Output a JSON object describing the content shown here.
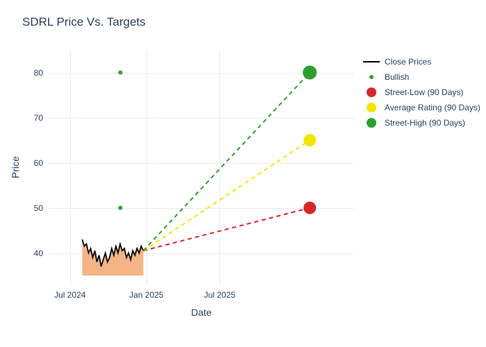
{
  "chart": {
    "title": "SDRL Price Vs. Targets",
    "xlabel": "Date",
    "ylabel": "Price",
    "background": "#ffffff",
    "plot_bg": "#ffffff",
    "grid_color": "#e5ecf6",
    "text_color": "#2a3f5f",
    "ylim": [
      33,
      85
    ],
    "yticks": [
      40,
      50,
      60,
      70,
      80
    ],
    "xticks": [
      "Jul 2024",
      "Jan 2025",
      "Jul 2025"
    ],
    "xtick_positions": [
      0.07,
      0.32,
      0.56
    ],
    "close_prices": {
      "color": "#000000",
      "fill": "#f4ac78",
      "fill_opacity": 0.9,
      "x_start": 0.11,
      "x_end": 0.31,
      "y_baseline": 35,
      "points": [
        43,
        41.5,
        42,
        40,
        41,
        39,
        40.5,
        38,
        39.5,
        37,
        38.5,
        40,
        38,
        39,
        41,
        39.5,
        41.5,
        40,
        42,
        40.5,
        41,
        39,
        40,
        38.5,
        40.5,
        39.5,
        41,
        40,
        41.5,
        40.5
      ]
    },
    "bullish_points": {
      "color": "#2ca02c",
      "size": 6,
      "points": [
        {
          "x": 0.235,
          "y": 80
        },
        {
          "x": 0.235,
          "y": 50
        }
      ]
    },
    "projections": {
      "start_x": 0.31,
      "start_y": 40.5,
      "end_x": 0.855,
      "dash": "6,5",
      "width": 2,
      "targets": {
        "low": {
          "y": 50,
          "color": "#d62728",
          "marker_size": 18
        },
        "avg": {
          "y": 65,
          "color": "#f2e600",
          "marker_size": 18
        },
        "high": {
          "y": 80,
          "color": "#2ca02c",
          "marker_size": 20
        }
      }
    },
    "legend": [
      {
        "label": "Close Prices",
        "type": "line",
        "color": "#000000"
      },
      {
        "label": "Bullish",
        "type": "dot",
        "color": "#2ca02c",
        "size": 6
      },
      {
        "label": "Street-Low (90 Days)",
        "type": "dot",
        "color": "#d62728",
        "size": 14
      },
      {
        "label": "Average Rating (90 Days)",
        "type": "dot",
        "color": "#f2e600",
        "size": 14
      },
      {
        "label": "Street-High (90 Days)",
        "type": "dot",
        "color": "#2ca02c",
        "size": 14
      }
    ]
  }
}
